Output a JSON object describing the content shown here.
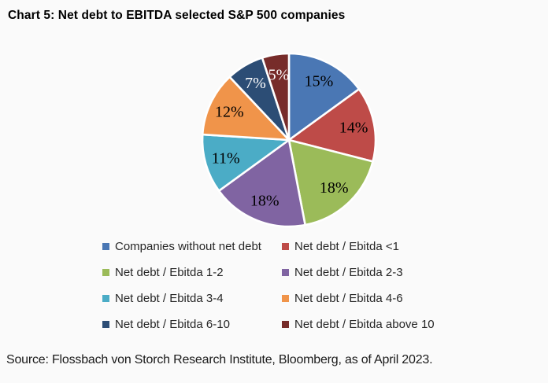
{
  "title": "Chart 5: Net debt to EBITDA selected S&P 500 companies",
  "source": "Source: Flossbach von Storch Research Institute, Bloomberg, as of April 2023.",
  "chart_data": {
    "type": "pie",
    "title": "Chart 5: Net debt to EBITDA selected S&P 500 companies",
    "start_angle_deg": 0,
    "direction": "clockwise",
    "legend_position": "bottom",
    "legend_columns": 2,
    "separator_color": "#FFFFFF",
    "slices": [
      {
        "label": "Companies without net debt",
        "value": 15,
        "display": "15%",
        "color": "#4A77B4",
        "label_color": "#000000"
      },
      {
        "label": "Net debt / Ebitda <1",
        "value": 14,
        "display": "14%",
        "color": "#BE4B48",
        "label_color": "#000000"
      },
      {
        "label": "Net debt / Ebitda 1-2",
        "value": 18,
        "display": "18%",
        "color": "#9BBB59",
        "label_color": "#000000"
      },
      {
        "label": "Net debt / Ebitda 2-3",
        "value": 18,
        "display": "18%",
        "color": "#8064A2",
        "label_color": "#000000"
      },
      {
        "label": "Net debt / Ebitda 3-4",
        "value": 11,
        "display": "11%",
        "color": "#4BACC6",
        "label_color": "#000000"
      },
      {
        "label": "Net debt / Ebitda 4-6",
        "value": 12,
        "display": "12%",
        "color": "#F0944A",
        "label_color": "#000000"
      },
      {
        "label": "Net debt / Ebitda 6-10",
        "value": 7,
        "display": "7%",
        "color": "#2C4D75",
        "label_color": "#FFFFFF"
      },
      {
        "label": "Net debt / Ebitda above 10",
        "value": 5,
        "display": "5%",
        "color": "#772C2A",
        "label_color": "#FFFFFF"
      }
    ]
  }
}
